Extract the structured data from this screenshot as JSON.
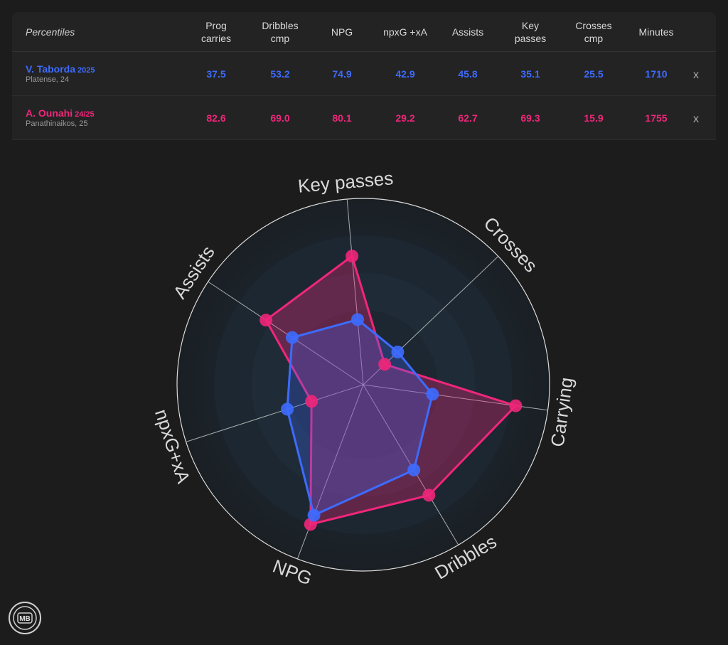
{
  "table": {
    "header_label": "Percentiles",
    "columns": [
      "Prog\ncarries",
      "Dribbles\ncmp",
      "NPG",
      "npxG +xA",
      "Assists",
      "Key\npasses",
      "Crosses\ncmp",
      "Minutes"
    ],
    "remove_symbol": "x",
    "players": [
      {
        "name": "V. Taborda",
        "season": "2025",
        "team": "Platense, 24",
        "color": "#3d6bff",
        "values": [
          "37.5",
          "53.2",
          "74.9",
          "42.9",
          "45.8",
          "35.1",
          "25.5",
          "1710"
        ]
      },
      {
        "name": "A. Ounahi",
        "season": "24/25",
        "team": "Panathinaikos, 25",
        "color": "#f0267a",
        "values": [
          "82.6",
          "69.0",
          "80.1",
          "29.2",
          "62.7",
          "69.3",
          "15.9",
          "1755"
        ]
      }
    ]
  },
  "chart_data": {
    "type": "radar",
    "axes": [
      "Key passes",
      "Crosses",
      "Carrying",
      "Dribbles",
      "NPG",
      "npxG+xA",
      "Assists"
    ],
    "range": [
      0,
      100
    ],
    "series": [
      {
        "name": "V. Taborda",
        "color": "#3d6bff",
        "values": [
          35.1,
          25.5,
          37.5,
          53.2,
          74.9,
          42.9,
          45.8
        ]
      },
      {
        "name": "A. Ounahi",
        "color": "#f0267a",
        "values": [
          69.3,
          15.9,
          82.6,
          69.0,
          80.1,
          29.2,
          62.7
        ]
      }
    ]
  },
  "logo": {
    "text": "MB"
  }
}
